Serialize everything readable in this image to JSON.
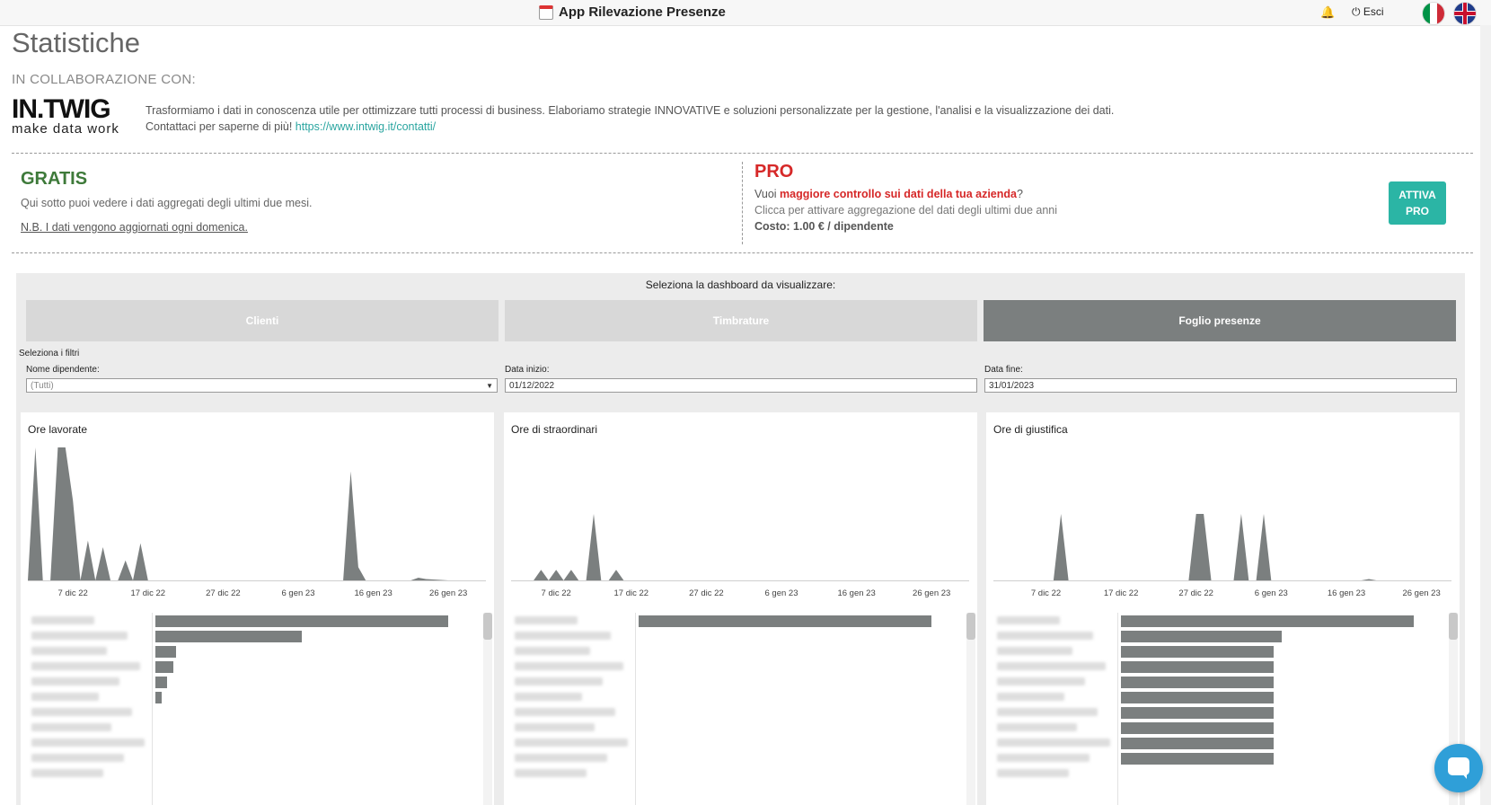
{
  "header": {
    "title": "App Rilevazione Presenze",
    "logout_label": "⏻ Esci"
  },
  "page": {
    "title": "Statistiche",
    "collab_label": "IN COLLABORAZIONE CON:",
    "logo_main": "IN.TWIG",
    "logo_sub": "make data work",
    "intro_line1": "Trasformiamo i dati in conoscenza utile per ottimizzare tutti processi di business. Elaboriamo strategie INNOVATIVE e soluzioni personalizzate per la gestione, l'analisi e la visualizzazione dei dati.",
    "intro_line2": "Contattaci per saperne di più! ",
    "intro_link": "https://www.intwig.it/contatti/"
  },
  "gratis": {
    "title": "GRATIS",
    "desc": "Qui sotto puoi vedere i dati aggregati degli ultimi due mesi.",
    "note": "N.B. I dati vengono aggiornati ogni domenica."
  },
  "pro": {
    "title": "PRO",
    "l1_prefix": "Vuoi ",
    "l1_bold": "maggiore controllo sui dati della tua azienda",
    "l1_suffix": "?",
    "l2": "Clicca per attivare aggregazione del dati degli ultimi due anni",
    "l3": "Costo: 1.00 € / dipendente",
    "btn_line1": "ATTIVA",
    "btn_line2": "PRO"
  },
  "dashboard": {
    "caption": "Seleziona la dashboard da visualizzare:",
    "tabs": [
      {
        "label": "Clienti",
        "active": false
      },
      {
        "label": "Timbrature",
        "active": false
      },
      {
        "label": "Foglio presenze",
        "active": true
      }
    ],
    "filters_label": "Seleziona i filtri",
    "filters": {
      "employee_label": "Nome dipendente:",
      "employee_value": "(Tutti)",
      "start_label": "Data inizio:",
      "start_value": "01/12/2022",
      "end_label": "Data fine:",
      "end_value": "31/01/2023"
    }
  },
  "colors": {
    "accent": "#2bb5a5",
    "pro_red": "#d62828",
    "gratis_green": "#3e7a3a",
    "bar": "#7b7f7f"
  },
  "chart_data": [
    {
      "type": "area",
      "title": "Ore lavorate",
      "x_ticks": [
        "7 dic 22",
        "17 dic 22",
        "27 dic 22",
        "6 gen 23",
        "16 gen 23",
        "26 gen 23"
      ],
      "x_start": "2022-12-01",
      "x_end": "2023-01-31",
      "points": [
        [
          "2022-12-01",
          0
        ],
        [
          "2022-12-02",
          100
        ],
        [
          "2022-12-03",
          0
        ],
        [
          "2022-12-04",
          0
        ],
        [
          "2022-12-05",
          100
        ],
        [
          "2022-12-06",
          100
        ],
        [
          "2022-12-07",
          60
        ],
        [
          "2022-12-08",
          0
        ],
        [
          "2022-12-09",
          30
        ],
        [
          "2022-12-10",
          0
        ],
        [
          "2022-12-11",
          25
        ],
        [
          "2022-12-12",
          0
        ],
        [
          "2022-12-13",
          0
        ],
        [
          "2022-12-14",
          15
        ],
        [
          "2022-12-15",
          0
        ],
        [
          "2022-12-16",
          28
        ],
        [
          "2022-12-17",
          0
        ],
        [
          "2023-01-12",
          0
        ],
        [
          "2023-01-13",
          82
        ],
        [
          "2023-01-14",
          10
        ],
        [
          "2023-01-15",
          0
        ],
        [
          "2023-01-21",
          0
        ],
        [
          "2023-01-22",
          2
        ],
        [
          "2023-01-23",
          1
        ],
        [
          "2023-01-26",
          0
        ]
      ],
      "bar_values": [
        100,
        50,
        7,
        6,
        4,
        2
      ]
    },
    {
      "type": "area",
      "title": "Ore di straordinari",
      "x_ticks": [
        "7 dic 22",
        "17 dic 22",
        "27 dic 22",
        "6 gen 23",
        "16 gen 23",
        "26 gen 23"
      ],
      "x_start": "2022-12-01",
      "x_end": "2023-01-31",
      "points": [
        [
          "2022-12-04",
          0
        ],
        [
          "2022-12-05",
          8
        ],
        [
          "2022-12-06",
          0
        ],
        [
          "2022-12-07",
          8
        ],
        [
          "2022-12-08",
          0
        ],
        [
          "2022-12-09",
          8
        ],
        [
          "2022-12-10",
          0
        ],
        [
          "2022-12-11",
          0
        ],
        [
          "2022-12-12",
          50
        ],
        [
          "2022-12-13",
          0
        ],
        [
          "2022-12-14",
          0
        ],
        [
          "2022-12-15",
          8
        ],
        [
          "2022-12-16",
          0
        ]
      ],
      "bar_values": [
        100
      ]
    },
    {
      "type": "area",
      "title": "Ore di giustifica",
      "x_ticks": [
        "7 dic 22",
        "17 dic 22",
        "27 dic 22",
        "6 gen 23",
        "16 gen 23",
        "26 gen 23"
      ],
      "x_start": "2022-11-30",
      "x_end": "2023-01-30",
      "points": [
        [
          "2022-12-08",
          0
        ],
        [
          "2022-12-09",
          50
        ],
        [
          "2022-12-10",
          0
        ],
        [
          "2022-12-26",
          0
        ],
        [
          "2022-12-27",
          50
        ],
        [
          "2022-12-28",
          50
        ],
        [
          "2022-12-29",
          0
        ],
        [
          "2023-01-01",
          0
        ],
        [
          "2023-01-02",
          50
        ],
        [
          "2023-01-03",
          0
        ],
        [
          "2023-01-04",
          0
        ],
        [
          "2023-01-05",
          50
        ],
        [
          "2023-01-06",
          0
        ],
        [
          "2023-01-18",
          0
        ],
        [
          "2023-01-19",
          1
        ],
        [
          "2023-01-20",
          0
        ]
      ],
      "bar_values": [
        100,
        55,
        52,
        52,
        52,
        52,
        52,
        52,
        52,
        52
      ]
    }
  ]
}
